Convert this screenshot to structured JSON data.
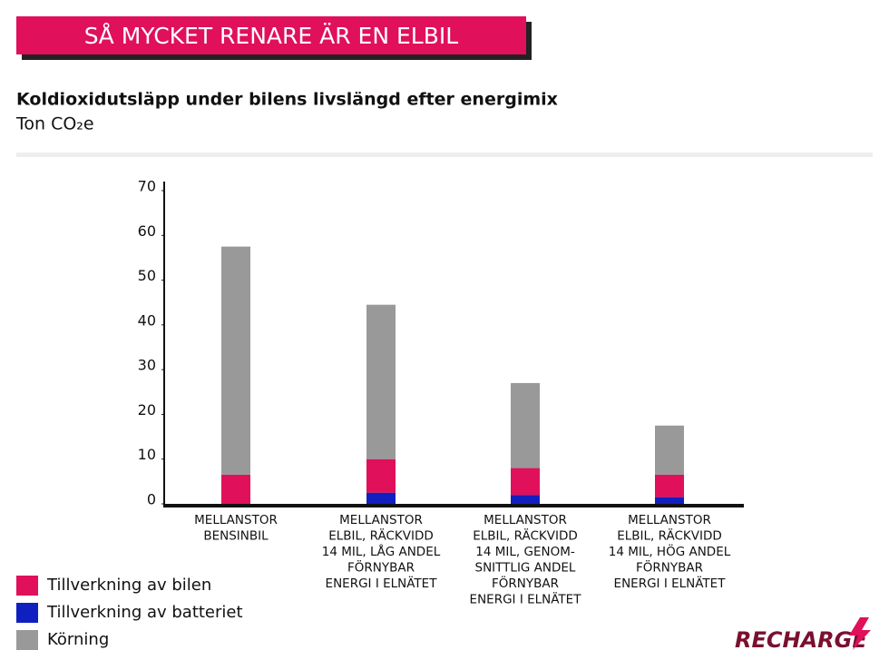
{
  "chart_data": {
    "type": "stacked-bar",
    "banner": "SÅ MYCKET RENARE ÄR EN ELBIL",
    "title": "Koldioxidutsläpp under bilens livslängd efter energimix",
    "subtitle": "Ton CO₂e",
    "brand": "RECHARGE",
    "categories": [
      [
        "MELLANSTOR",
        "BENSINBIL"
      ],
      [
        "MELLANSTOR",
        "ELBIL, RÄCKVIDD",
        "14 MIL, LÅG ANDEL",
        "FÖRNYBAR",
        "ENERGI I ELNÄTET"
      ],
      [
        "MELLANSTOR",
        "ELBIL, RÄCKVIDD",
        "14 MIL, GENOM-",
        "SNITTLIG ANDEL",
        "FÖRNYBAR",
        "ENERGI I ELNÄTET"
      ],
      [
        "MELLANSTOR",
        "ELBIL, RÄCKVIDD",
        "14 MIL, HÖG ANDEL",
        "FÖRNYBAR",
        "ENERGI I ELNÄTET"
      ]
    ],
    "series": [
      {
        "name": "Tillverkning av bilen",
        "color": "#e0105a",
        "values": [
          6.5,
          7.5,
          6,
          5
        ]
      },
      {
        "name": "Tillverkning av batteriet",
        "color": "#1020c0",
        "values": [
          0,
          2.5,
          2,
          1.5
        ]
      },
      {
        "name": "Körning",
        "color": "#999999",
        "values": [
          51,
          34.5,
          19,
          11
        ]
      }
    ],
    "ylim": [
      0,
      70
    ],
    "yticks": [
      0,
      10,
      20,
      30,
      40,
      50,
      60,
      70
    ]
  }
}
